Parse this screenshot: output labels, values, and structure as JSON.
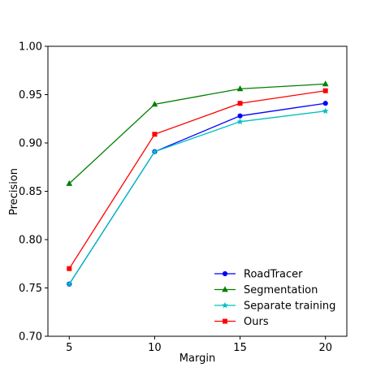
{
  "chart_data": {
    "type": "line",
    "title": "",
    "xlabel": "Margin",
    "ylabel": "Precision",
    "x": [
      5,
      10,
      15,
      20
    ],
    "xlim": [
      3.75,
      21.25
    ],
    "ylim": [
      0.7,
      1.0
    ],
    "xticks": [
      "5",
      "10",
      "15",
      "20"
    ],
    "yticks": [
      "0.70",
      "0.75",
      "0.80",
      "0.85",
      "0.90",
      "0.95",
      "1.00"
    ],
    "grid": false,
    "legend_position": "lower-right",
    "series": [
      {
        "name": "RoadTracer",
        "color": "#0000ff",
        "marker": "circle",
        "values": [
          0.754,
          0.891,
          0.928,
          0.941
        ]
      },
      {
        "name": "Segmentation",
        "color": "#008000",
        "marker": "triangle",
        "values": [
          0.858,
          0.94,
          0.956,
          0.961
        ]
      },
      {
        "name": "Separate training",
        "color": "#00bfbf",
        "marker": "star",
        "values": [
          0.754,
          0.891,
          0.922,
          0.933
        ]
      },
      {
        "name": "Ours",
        "color": "#ff0000",
        "marker": "square",
        "values": [
          0.77,
          0.909,
          0.941,
          0.954
        ]
      }
    ]
  }
}
